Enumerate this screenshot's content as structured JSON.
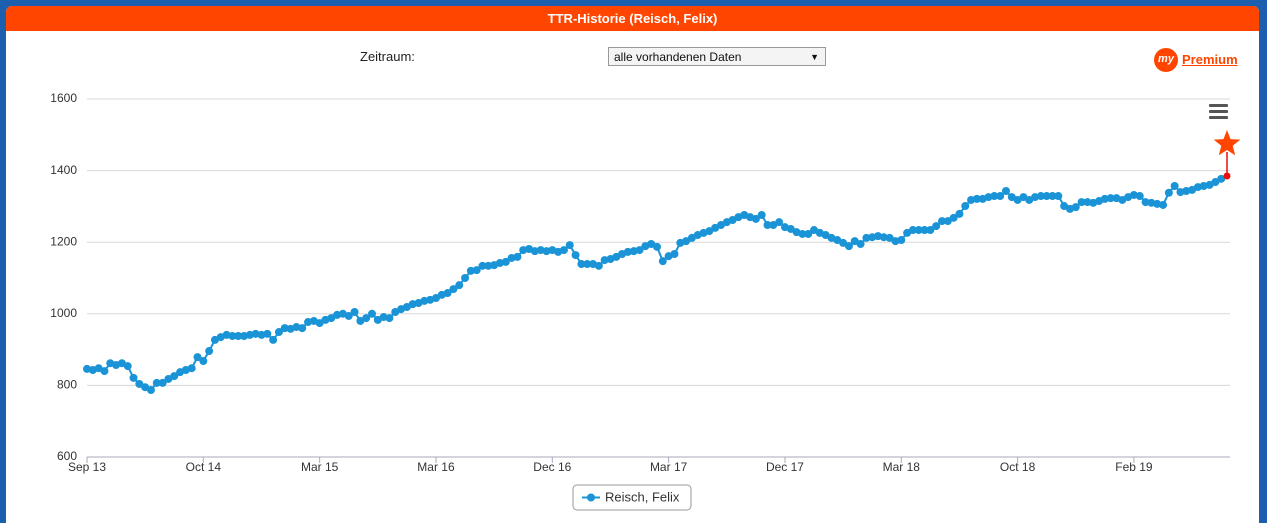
{
  "header": {
    "title": "TTR-Historie (Reisch, Felix)"
  },
  "controls": {
    "label": "Zeitraum:",
    "select": "alle vorhandenen Daten"
  },
  "logo": {
    "prefix": "my",
    "text": "Premium"
  },
  "chart_data": {
    "type": "line",
    "categories": [
      "Sep 13",
      null,
      null,
      null,
      null,
      null,
      null,
      null,
      null,
      null,
      null,
      null,
      null,
      null,
      null,
      null,
      null,
      null,
      null,
      null,
      "Oct 14",
      null,
      null,
      null,
      null,
      null,
      null,
      null,
      null,
      null,
      null,
      null,
      null,
      null,
      null,
      null,
      null,
      null,
      null,
      null,
      "Mar 15",
      null,
      null,
      null,
      null,
      null,
      null,
      null,
      null,
      null,
      null,
      null,
      null,
      null,
      null,
      null,
      null,
      null,
      null,
      null,
      "Mar 16",
      null,
      null,
      null,
      null,
      null,
      null,
      null,
      null,
      null,
      null,
      null,
      null,
      null,
      null,
      null,
      null,
      null,
      null,
      null,
      "Dec 16",
      null,
      null,
      null,
      null,
      null,
      null,
      null,
      null,
      null,
      null,
      null,
      null,
      null,
      null,
      null,
      null,
      null,
      null,
      null,
      "Mar 17",
      null,
      null,
      null,
      null,
      null,
      null,
      null,
      null,
      null,
      null,
      null,
      null,
      null,
      null,
      null,
      null,
      null,
      null,
      null,
      "Dec 17",
      null,
      null,
      null,
      null,
      null,
      null,
      null,
      null,
      null,
      null,
      null,
      null,
      null,
      null,
      null,
      null,
      null,
      null,
      null,
      "Mar 18",
      null,
      null,
      null,
      null,
      null,
      null,
      null,
      null,
      null,
      null,
      null,
      null,
      null,
      null,
      null,
      null,
      null,
      null,
      null,
      "Oct 18",
      null,
      null,
      null,
      null,
      null,
      null,
      null,
      null,
      null,
      null,
      null,
      null,
      null,
      null,
      null,
      null,
      null,
      null,
      null,
      "Feb 19",
      null,
      null,
      null,
      null,
      null,
      null,
      null,
      null,
      null,
      null,
      null,
      null,
      null,
      null,
      null,
      null
    ],
    "series": [
      {
        "name": "Reisch, Felix",
        "color": "#1a94d6",
        "values": [
          846,
          843,
          848,
          840,
          862,
          857,
          862,
          854,
          821,
          804,
          795,
          787,
          807,
          807,
          818,
          826,
          837,
          843,
          848,
          879,
          868,
          896,
          927,
          935,
          941,
          938,
          938,
          938,
          941,
          944,
          941,
          944,
          927,
          949,
          960,
          958,
          963,
          960,
          977,
          980,
          974,
          983,
          988,
          997,
          1000,
          994,
          1005,
          980,
          988,
          1000,
          983,
          991,
          988,
          1005,
          1013,
          1019,
          1027,
          1030,
          1036,
          1039,
          1044,
          1053,
          1058,
          1069,
          1080,
          1100,
          1120,
          1122,
          1134,
          1134,
          1136,
          1142,
          1145,
          1156,
          1159,
          1178,
          1181,
          1175,
          1178,
          1175,
          1178,
          1173,
          1178,
          1192,
          1164,
          1139,
          1139,
          1139,
          1134,
          1150,
          1153,
          1159,
          1167,
          1173,
          1175,
          1178,
          1189,
          1195,
          1187,
          1147,
          1161,
          1167,
          1198,
          1203,
          1212,
          1220,
          1226,
          1231,
          1240,
          1248,
          1256,
          1262,
          1270,
          1276,
          1270,
          1265,
          1276,
          1248,
          1248,
          1256,
          1242,
          1237,
          1228,
          1223,
          1223,
          1234,
          1226,
          1220,
          1212,
          1206,
          1198,
          1189,
          1203,
          1195,
          1212,
          1214,
          1217,
          1214,
          1212,
          1203,
          1206,
          1226,
          1234,
          1234,
          1234,
          1234,
          1245,
          1259,
          1259,
          1268,
          1279,
          1301,
          1318,
          1321,
          1321,
          1326,
          1329,
          1329,
          1343,
          1326,
          1318,
          1326,
          1318,
          1326,
          1329,
          1329,
          1329,
          1329,
          1301,
          1293,
          1298,
          1312,
          1312,
          1310,
          1315,
          1321,
          1323,
          1323,
          1318,
          1326,
          1332,
          1329,
          1312,
          1310,
          1307,
          1304,
          1338,
          1357,
          1340,
          1343,
          1346,
          1354,
          1357,
          1360,
          1368,
          1377,
          1385
        ]
      }
    ],
    "highlight_color": "#e8100d",
    "ylim": [
      600,
      1600
    ],
    "yticks": [
      600,
      800,
      1000,
      1200,
      1400,
      1600
    ],
    "grid": true
  }
}
